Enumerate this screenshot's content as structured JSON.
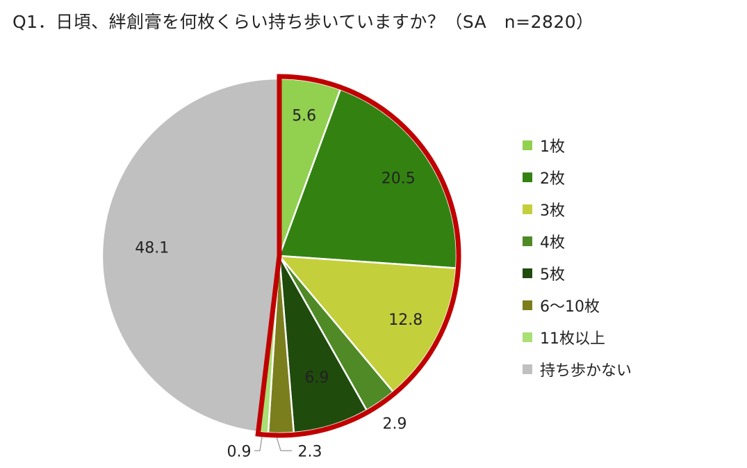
{
  "chart_data": {
    "type": "pie",
    "title": "Q1．日頃、絆創膏を何枚くらい持ち歩いていますか？（SA　n=2820）",
    "categories": [
      "1枚",
      "2枚",
      "3枚",
      "4枚",
      "5枚",
      "6〜10枚",
      "11枚以上",
      "持ち歩かない"
    ],
    "values": [
      5.6,
      20.5,
      12.8,
      2.9,
      6.9,
      2.3,
      0.9,
      48.1
    ],
    "labels": [
      "5.6",
      "20.5",
      "12.8",
      "2.9",
      "6.9",
      "2.3",
      "0.9",
      "48.1"
    ],
    "colors": [
      "#92d050",
      "#338211",
      "#c4cf3c",
      "#4f8a26",
      "#1f4b0c",
      "#7b7e1d",
      "#a9df73",
      "#c0c0c0"
    ],
    "highlight_color": "#c00000",
    "legend_position": "right",
    "start_angle": "12 o'clock, clockwise"
  }
}
